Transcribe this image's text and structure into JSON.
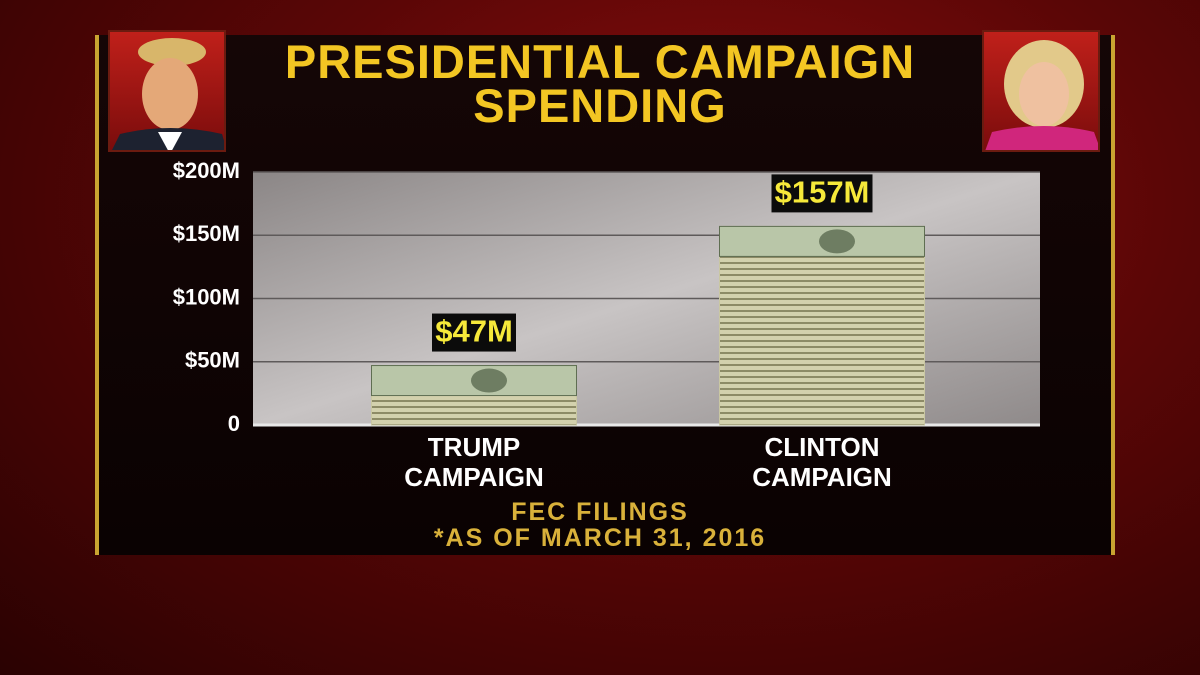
{
  "chart_data": {
    "type": "bar",
    "title": "PRESIDENTIAL CAMPAIGN SPENDING",
    "categories": [
      "TRUMP CAMPAIGN",
      "CLINTON CAMPAIGN"
    ],
    "values": [
      47,
      157
    ],
    "value_labels": [
      "$47M",
      "$157M"
    ],
    "color": "#c9c7a2",
    "ylim": [
      0,
      200
    ],
    "yticks": [
      0,
      {
        "value": 50,
        "label": "$50M"
      },
      {
        "value": 100,
        "label": "$100M"
      },
      {
        "value": 150,
        "label": "$150M"
      },
      {
        "value": 200,
        "label": "$200M"
      }
    ],
    "grid": true,
    "notes": [
      "FEC FILINGS",
      "*AS OF MARCH 31, 2016"
    ]
  }
}
